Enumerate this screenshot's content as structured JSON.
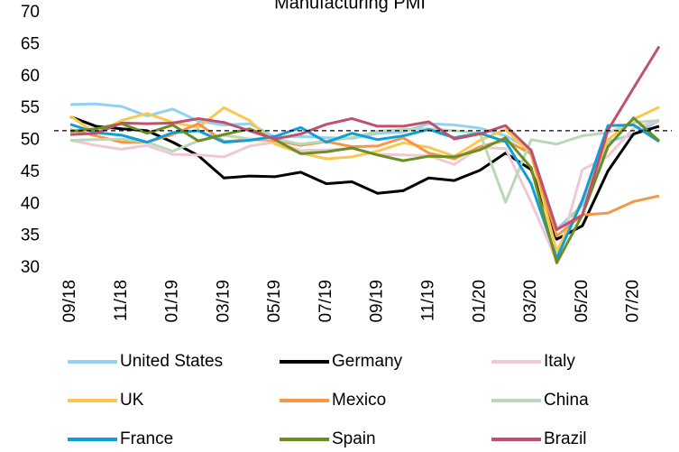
{
  "chart_data": {
    "type": "line",
    "title": "Manufacturing PMI",
    "categories": [
      "09/18",
      null,
      "11/18",
      null,
      "01/19",
      null,
      "03/19",
      null,
      "05/19",
      null,
      "07/19",
      null,
      "09/19",
      null,
      "11/19",
      null,
      "01/20",
      null,
      "03/20",
      null,
      "05/20",
      null,
      "07/20",
      null
    ],
    "ylim": [
      30,
      70
    ],
    "yticks": [
      30,
      35,
      40,
      45,
      50,
      55,
      60,
      65,
      70
    ],
    "reference_line": 51.5,
    "series": [
      {
        "name": "United States",
        "color": "#92d1f0",
        "values": [
          55.6,
          55.7,
          55.3,
          53.8,
          54.9,
          53.0,
          52.4,
          52.6,
          50.5,
          50.6,
          50.4,
          50.3,
          51.1,
          51.3,
          52.6,
          52.4,
          51.9,
          50.7,
          48.5,
          36.1,
          39.8,
          49.8,
          50.9,
          53.1
        ]
      },
      {
        "name": "Germany",
        "color": "#000000",
        "values": [
          53.7,
          52.2,
          51.8,
          51.5,
          49.7,
          47.6,
          44.1,
          44.4,
          44.3,
          45.0,
          43.2,
          43.5,
          41.7,
          42.1,
          44.1,
          43.7,
          45.3,
          48.0,
          45.4,
          34.5,
          36.6,
          45.2,
          51.0,
          52.2
        ]
      },
      {
        "name": "Italy",
        "color": "#f0c8d4",
        "values": [
          50.0,
          49.2,
          48.6,
          49.2,
          47.8,
          47.7,
          47.4,
          49.1,
          49.7,
          48.4,
          48.5,
          48.7,
          47.8,
          47.7,
          47.6,
          46.2,
          48.9,
          48.7,
          40.3,
          31.1,
          45.4,
          47.5,
          51.9,
          53.1
        ]
      },
      {
        "name": "UK",
        "color": "#f8c850",
        "values": [
          53.8,
          51.1,
          53.1,
          54.2,
          52.8,
          52.0,
          55.1,
          53.1,
          49.4,
          48.0,
          47.1,
          47.4,
          48.3,
          49.6,
          48.9,
          47.5,
          50.0,
          51.7,
          47.8,
          32.6,
          40.7,
          50.1,
          53.3,
          55.2
        ]
      },
      {
        "name": "Mexico",
        "color": "#f79646",
        "values": [
          51.7,
          50.7,
          49.7,
          49.7,
          50.9,
          52.6,
          49.8,
          50.1,
          50.0,
          49.2,
          49.8,
          49.0,
          49.1,
          50.4,
          48.0,
          47.1,
          49.0,
          50.0,
          47.9,
          35.0,
          38.3,
          38.6,
          40.4,
          41.3
        ]
      },
      {
        "name": "China",
        "color": "#b8d8b8",
        "values": [
          50.0,
          50.1,
          50.2,
          49.7,
          48.3,
          49.9,
          50.8,
          50.2,
          50.2,
          49.4,
          49.9,
          50.4,
          51.4,
          51.7,
          51.8,
          51.5,
          51.1,
          40.3,
          50.1,
          49.4,
          50.7,
          51.2,
          52.8,
          53.1
        ]
      },
      {
        "name": "France",
        "color": "#0f9fd8",
        "values": [
          52.5,
          51.2,
          50.8,
          49.7,
          51.2,
          51.5,
          49.7,
          50.0,
          50.6,
          52.0,
          49.7,
          51.1,
          50.1,
          50.7,
          51.7,
          50.4,
          51.1,
          49.8,
          43.2,
          31.5,
          40.6,
          52.3,
          52.4,
          49.8
        ]
      },
      {
        "name": "Spain",
        "color": "#6b8e23",
        "values": [
          51.4,
          51.8,
          52.6,
          51.1,
          52.4,
          49.9,
          50.9,
          51.8,
          50.1,
          47.9,
          48.2,
          48.8,
          47.7,
          46.8,
          47.5,
          47.4,
          48.5,
          50.4,
          45.7,
          30.8,
          38.3,
          49.0,
          53.5,
          49.9
        ]
      },
      {
        "name": "Brazil",
        "color": "#c0506e",
        "values": [
          50.9,
          51.1,
          52.7,
          52.6,
          52.7,
          53.4,
          52.8,
          51.5,
          50.2,
          51.0,
          52.5,
          53.4,
          52.2,
          52.2,
          52.9,
          50.2,
          51.0,
          52.3,
          48.4,
          36.0,
          38.3,
          51.6,
          58.2,
          64.7
        ]
      }
    ]
  }
}
